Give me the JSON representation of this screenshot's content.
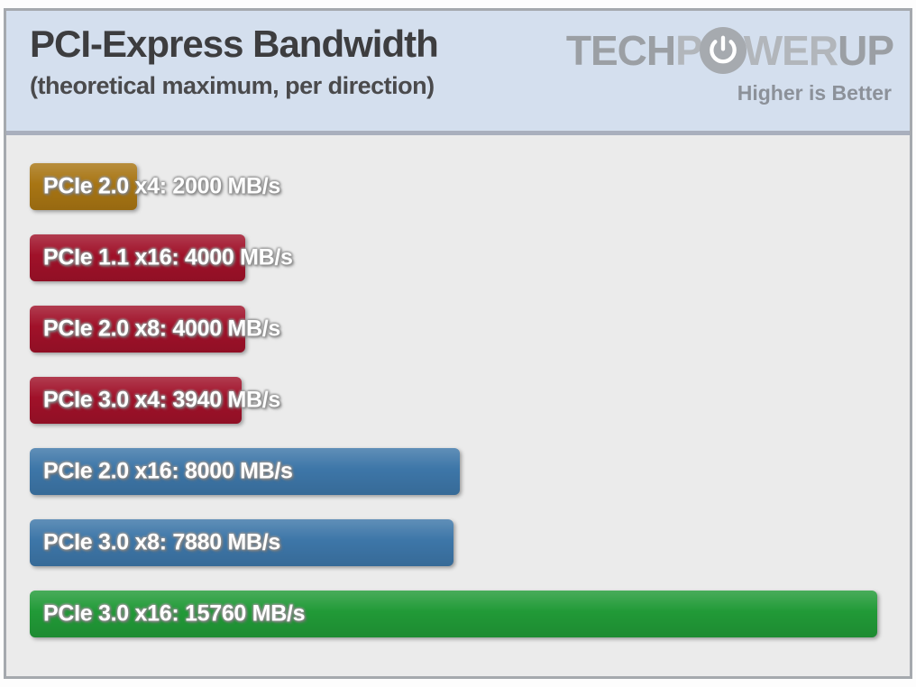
{
  "header": {
    "title": "PCI-Express Bandwidth",
    "subtitle": "(theoretical maximum, per direction)",
    "logo": {
      "part1": "TECH",
      "part2": "P",
      "part3": "WER",
      "part4": "UP",
      "icon": "power-icon"
    },
    "tagline": "Higher is Better"
  },
  "colors": {
    "header_bg": "#d4dfee",
    "body_bg": "#ebebeb",
    "card_border": "#a5a9ae",
    "separator": "#a9afbd",
    "gold": "#a87513",
    "red": "#a01129",
    "blue": "#3d76a8",
    "green": "#219a37",
    "title_text": "#3d3d3f",
    "logo_gray": "#9b9fa4",
    "logo_light_gray": "#b2b6bb",
    "tagline_gray": "#8c9199",
    "bar_label_text": "#ffffff"
  },
  "chart_data": {
    "type": "bar",
    "orientation": "horizontal",
    "title": "PCI-Express Bandwidth",
    "subtitle": "(theoretical maximum, per direction)",
    "note": "Higher is Better",
    "unit": "MB/s",
    "xlim": [
      0,
      15760
    ],
    "grid": false,
    "legend": false,
    "bars": [
      {
        "label": "PCIe 2.0 x4",
        "value": 2000,
        "color": "#a87513"
      },
      {
        "label": "PCIe 1.1 x16",
        "value": 4000,
        "color": "#a01129"
      },
      {
        "label": "PCIe 2.0 x8",
        "value": 4000,
        "color": "#a01129"
      },
      {
        "label": "PCIe 3.0 x4",
        "value": 3940,
        "color": "#a01129"
      },
      {
        "label": "PCIe 2.0 x16",
        "value": 8000,
        "color": "#3d76a8"
      },
      {
        "label": "PCIe 3.0 x8",
        "value": 7880,
        "color": "#3d76a8"
      },
      {
        "label": "PCIe 3.0 x16",
        "value": 15760,
        "color": "#219a37"
      }
    ]
  }
}
